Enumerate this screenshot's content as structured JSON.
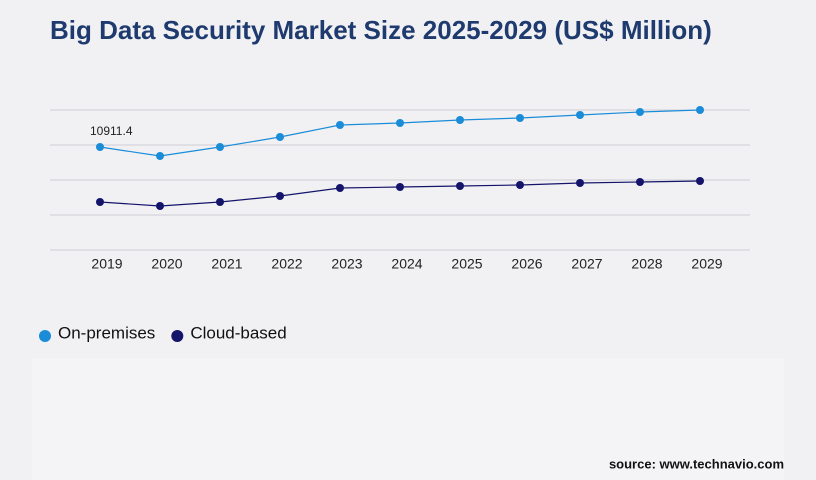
{
  "chart_data": {
    "type": "line",
    "title": "Big Data Security Market Size 2025-2029 (US$ Million)",
    "x": [
      "2019",
      "2020",
      "2021",
      "2022",
      "2023",
      "2024",
      "2025",
      "2026",
      "2027",
      "2028",
      "2029"
    ],
    "series": [
      {
        "name": "On-premises",
        "color": "#1a8cd8",
        "values": [
          10911.4,
          9958,
          10911,
          11971,
          13243,
          13455,
          13773,
          13984,
          14302,
          14620,
          14832
        ]
      },
      {
        "name": "Cloud-based",
        "color": "#14146b",
        "values": [
          5085,
          4661,
          5085,
          5721,
          6568,
          6674,
          6780,
          6886,
          7098,
          7204,
          7310
        ]
      }
    ],
    "ylim": [
      0,
      14832
    ],
    "source": "source: www.technavio.com"
  }
}
